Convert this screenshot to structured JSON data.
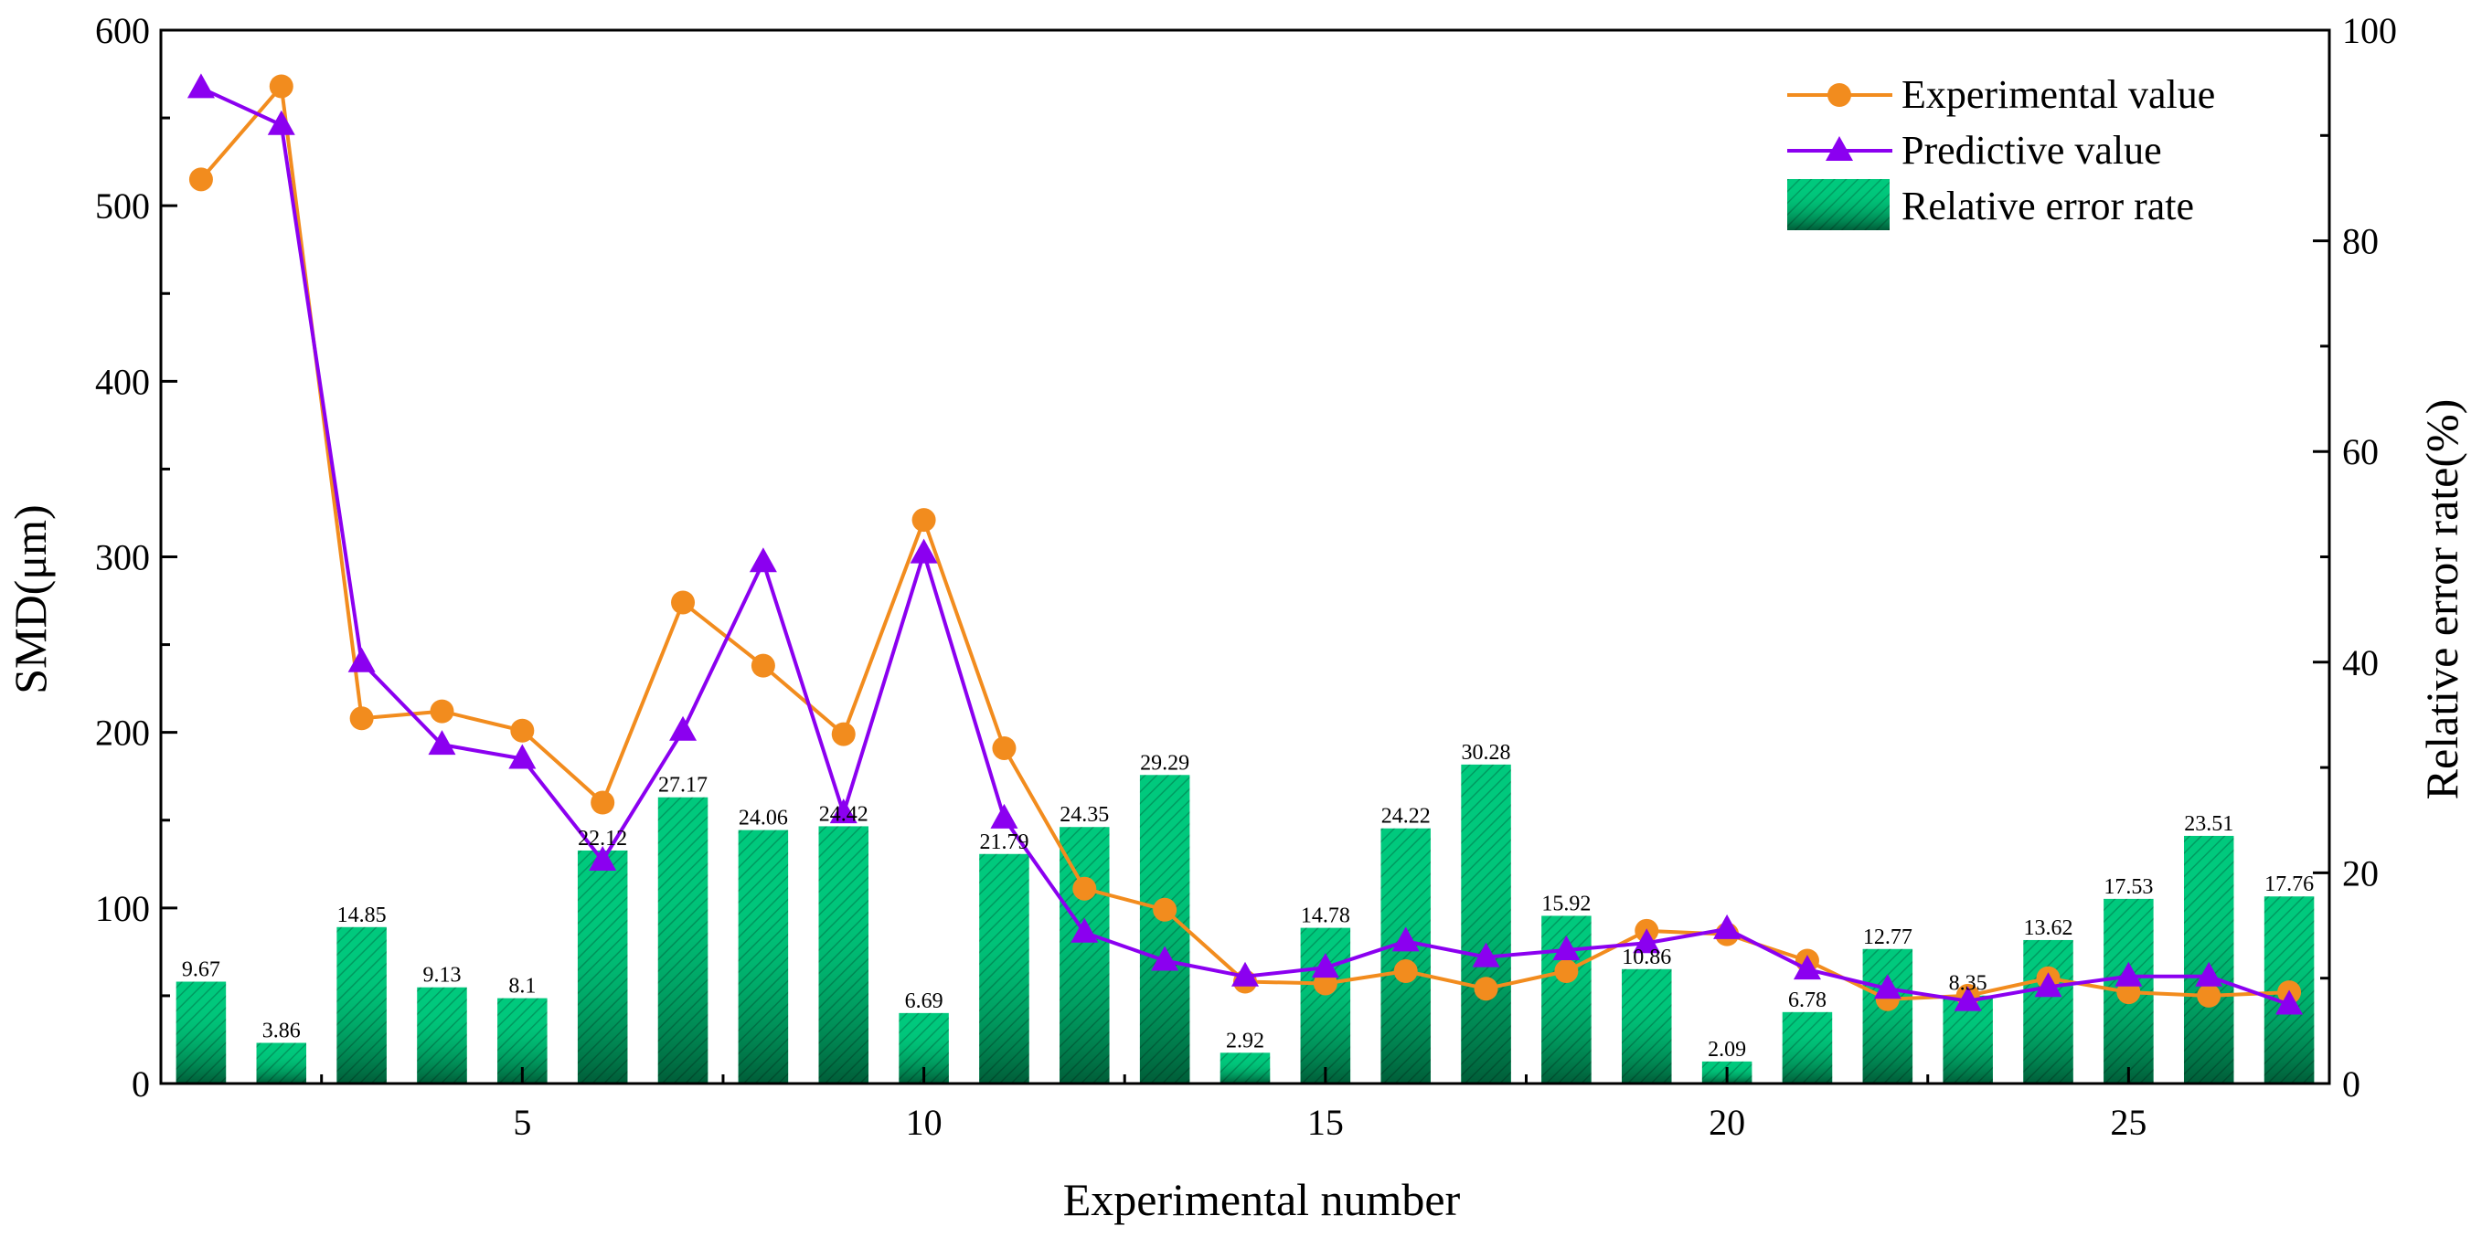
{
  "chart_data": {
    "type": "bar+line",
    "title": "",
    "xlabel": "Experimental number",
    "ylabel": "SMD(μm)",
    "y2label": "Relative error rate(%)",
    "xlim": [
      0.5,
      27.5
    ],
    "ylim": [
      0,
      600
    ],
    "y2lim": [
      0,
      100
    ],
    "x_ticks": [
      5,
      10,
      15,
      20,
      25
    ],
    "y_ticks": [
      0,
      100,
      200,
      300,
      400,
      500,
      600
    ],
    "y2_ticks": [
      0,
      20,
      40,
      60,
      80,
      100
    ],
    "x": [
      1,
      2,
      3,
      4,
      5,
      6,
      7,
      8,
      9,
      10,
      11,
      12,
      13,
      14,
      15,
      16,
      17,
      18,
      19,
      20,
      21,
      22,
      23,
      24,
      25,
      26,
      27
    ],
    "series": [
      {
        "name": "Experimental value",
        "type": "line",
        "axis": "left",
        "color": "#F28C1E",
        "marker": "circle",
        "values": [
          515,
          568,
          208,
          212,
          201,
          160,
          274,
          238,
          199,
          321,
          191,
          111,
          99,
          58,
          57,
          64,
          54,
          64,
          87,
          85,
          70,
          48,
          50,
          60,
          52,
          50,
          52
        ]
      },
      {
        "name": "Predictive value",
        "type": "line",
        "axis": "left",
        "color": "#8B00F0",
        "marker": "triangle",
        "values": [
          567,
          546,
          240,
          193,
          185,
          127,
          201,
          297,
          154,
          302,
          151,
          86,
          70,
          61,
          66,
          81,
          72,
          76,
          80,
          88,
          65,
          54,
          47,
          55,
          61,
          61,
          45
        ]
      },
      {
        "name": "Relative error rate",
        "type": "bar",
        "axis": "right",
        "color": "#00C97D",
        "values": [
          9.67,
          3.86,
          14.85,
          9.13,
          8.1,
          22.12,
          27.17,
          24.06,
          24.42,
          6.69,
          21.79,
          24.35,
          29.29,
          2.92,
          14.78,
          24.22,
          30.28,
          15.92,
          10.86,
          2.09,
          6.78,
          12.77,
          8.35,
          13.62,
          17.53,
          23.51,
          17.76
        ],
        "labels": [
          "9.67",
          "3.86",
          "14.85",
          "9.13",
          "8.1",
          "22.12",
          "27.17",
          "24.06",
          "24.42",
          "6.69",
          "21.79",
          "24.35",
          "29.29",
          "2.92",
          "14.78",
          "24.22",
          "30.28",
          "15.92",
          "10.86",
          "2.09",
          "6.78",
          "12.77",
          "8.35",
          "13.62",
          "17.53",
          "23.51",
          "17.76"
        ]
      }
    ],
    "legend": {
      "position": "top-right",
      "entries": [
        "Experimental value",
        "Predictive value",
        "Relative error rate"
      ]
    }
  }
}
